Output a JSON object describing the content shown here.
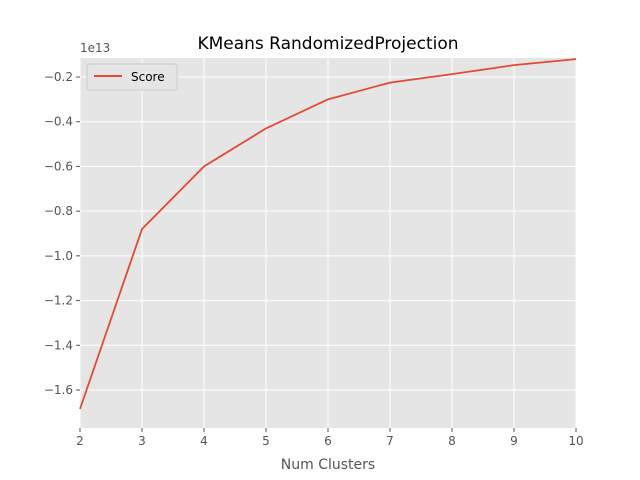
{
  "chart_data": {
    "type": "line",
    "title": "KMeans RandomizedProjection",
    "xlabel": "Num Clusters",
    "ylabel": "",
    "y_offset_label": "1e13",
    "x": [
      2,
      3,
      4,
      5,
      6,
      7,
      8,
      9,
      10
    ],
    "xlim": [
      2,
      10
    ],
    "ylim": [
      -1.77,
      -0.115
    ],
    "x_ticks": [
      2,
      3,
      4,
      5,
      6,
      7,
      8,
      9,
      10
    ],
    "y_ticks": [
      -1.6,
      -1.4,
      -1.2,
      -1.0,
      -0.8,
      -0.6,
      -0.4,
      -0.2
    ],
    "y_tick_labels": [
      "−1.6",
      "−1.4",
      "−1.2",
      "−1.0",
      "−0.8",
      "−0.6",
      "−0.4",
      "−0.2"
    ],
    "grid": true,
    "legend_position": "top-left",
    "series": [
      {
        "name": "Score",
        "color": "#E24A33",
        "values": [
          -1.685,
          -0.88,
          -0.6,
          -0.43,
          -0.3,
          -0.225,
          -0.187,
          -0.147,
          -0.12
        ]
      }
    ]
  },
  "colors": {
    "plot_background": "#E5E5E5",
    "grid": "#FFFFFF",
    "tick": "#555555"
  }
}
